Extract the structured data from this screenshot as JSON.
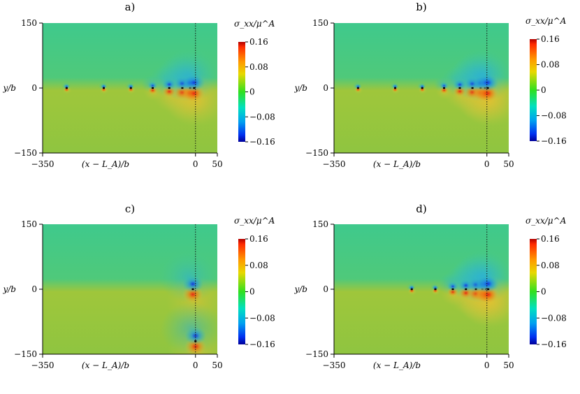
{
  "chart_data": [
    {
      "type": "heatmap",
      "panel_label": "a)",
      "xlabel": "(x − L_A)/b",
      "ylabel": "y/b",
      "colorbar_label": "σ_xx/μ^A",
      "xlim": [
        -350,
        50
      ],
      "ylim": [
        -150,
        150
      ],
      "xticks": [
        "−350",
        "0",
        "50"
      ],
      "yticks": [
        "150",
        "0",
        "−150"
      ],
      "colorbar_ticks": [
        "0.16",
        "0.08",
        "0",
        "−0.08",
        "−0.16"
      ],
      "clim": [
        -0.16,
        0.16
      ],
      "reference_line_x": 0,
      "dislocations": [
        {
          "x": -295,
          "y": 0
        },
        {
          "x": -210,
          "y": 0
        },
        {
          "x": -148,
          "y": 0
        },
        {
          "x": -98,
          "y": 0
        },
        {
          "x": -60,
          "y": 0
        },
        {
          "x": -30,
          "y": 0
        },
        {
          "x": -12,
          "y": 0
        },
        {
          "x": -3,
          "y": 0
        }
      ]
    },
    {
      "type": "heatmap",
      "panel_label": "b)",
      "xlabel": "(x − L_A)/b",
      "ylabel": "y/b",
      "colorbar_label": "σ_xx/μ^A",
      "xlim": [
        -350,
        50
      ],
      "ylim": [
        -150,
        150
      ],
      "xticks": [
        "−350",
        "0",
        "50"
      ],
      "yticks": [
        "150",
        "0",
        "−150"
      ],
      "colorbar_ticks": [
        "0.16",
        "0.08",
        "0",
        "−0.08",
        "−0.16"
      ],
      "clim": [
        -0.16,
        0.16
      ],
      "reference_line_x": 0,
      "dislocations": [
        {
          "x": -295,
          "y": 0
        },
        {
          "x": -210,
          "y": 0
        },
        {
          "x": -148,
          "y": 0
        },
        {
          "x": -98,
          "y": 0
        },
        {
          "x": -62,
          "y": 0
        },
        {
          "x": -33,
          "y": 0
        },
        {
          "x": -14,
          "y": 0
        },
        {
          "x": -4,
          "y": 0
        },
        {
          "x": 2,
          "y": 0
        }
      ]
    },
    {
      "type": "heatmap",
      "panel_label": "c)",
      "xlabel": "(x − L_A)/b",
      "ylabel": "y/b",
      "colorbar_label": "σ_xx/μ^A",
      "xlim": [
        -350,
        50
      ],
      "ylim": [
        -150,
        150
      ],
      "xticks": [
        "−350",
        "0",
        "50"
      ],
      "yticks": [
        "150",
        "0",
        "−150"
      ],
      "colorbar_ticks": [
        "0.16",
        "0.08",
        "0",
        "−0.08",
        "−0.16"
      ],
      "clim": [
        -0.16,
        0.16
      ],
      "reference_line_x": 0,
      "dislocations": [
        {
          "x": -6,
          "y": 0
        },
        {
          "x": 0,
          "y": -120
        }
      ]
    },
    {
      "type": "heatmap",
      "panel_label": "d)",
      "xlabel": "(x − L_A)/b",
      "ylabel": "y/b",
      "colorbar_label": "σ_xx/μ^A",
      "xlim": [
        -350,
        50
      ],
      "ylim": [
        -150,
        150
      ],
      "xticks": [
        "−350",
        "0",
        "50"
      ],
      "yticks": [
        "150",
        "0",
        "−150"
      ],
      "colorbar_ticks": [
        "0.16",
        "0.08",
        "0",
        "−0.08",
        "−0.16"
      ],
      "clim": [
        -0.16,
        0.16
      ],
      "reference_line_x": 0,
      "dislocations": [
        {
          "x": -172,
          "y": 0
        },
        {
          "x": -118,
          "y": 0
        },
        {
          "x": -78,
          "y": 0
        },
        {
          "x": -48,
          "y": 0
        },
        {
          "x": -25,
          "y": 0
        },
        {
          "x": -10,
          "y": 0
        },
        {
          "x": -2,
          "y": 0
        },
        {
          "x": 3,
          "y": 0
        }
      ]
    }
  ],
  "colors": {
    "field_base": "#8cc43f",
    "field_top": "#3ec98d",
    "tension": "#e0321c",
    "compression": "#1740d6",
    "reference_line": "#111111"
  }
}
